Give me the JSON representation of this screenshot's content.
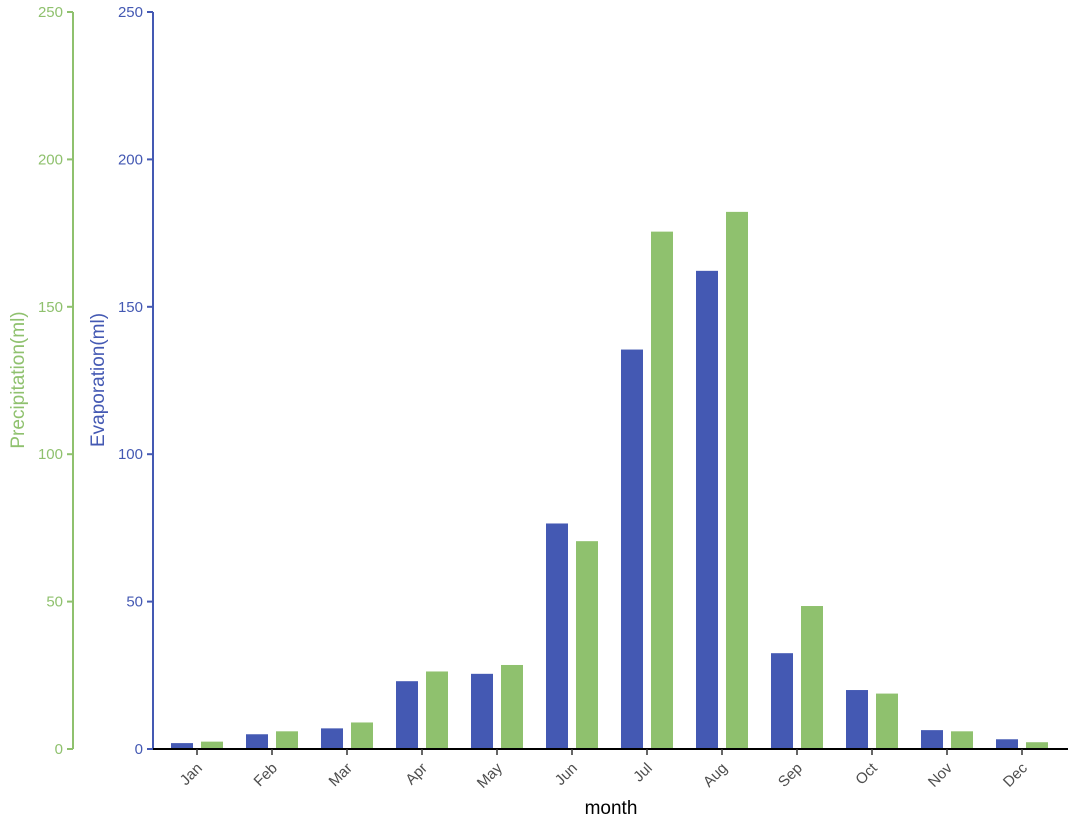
{
  "chart_data": {
    "type": "bar",
    "categories": [
      "Jan",
      "Feb",
      "Mar",
      "Apr",
      "May",
      "Jun",
      "Jul",
      "Aug",
      "Sep",
      "Oct",
      "Nov",
      "Dec"
    ],
    "series": [
      {
        "name": "Evaporation(ml)",
        "axis": "left-inner",
        "color": "#4459b3",
        "values": [
          2,
          5,
          7,
          23,
          25.5,
          76.5,
          135.5,
          162.2,
          32.5,
          20,
          6.4,
          3.3
        ]
      },
      {
        "name": "Precipitation(ml)",
        "axis": "left-outer",
        "color": "#8fc16e",
        "values": [
          2.5,
          6,
          9,
          26.3,
          28.5,
          70.5,
          175.5,
          182.2,
          48.5,
          18.8,
          6,
          2.3
        ]
      }
    ],
    "xlabel": "month",
    "y_evaporation": {
      "label": "Evaporation(ml)",
      "color": "#4459b3",
      "ylim": [
        0,
        250
      ],
      "ticks": [
        "0",
        "50",
        "100",
        "150",
        "200",
        "250"
      ]
    },
    "y_precipitation": {
      "label": "Precipitation(ml)",
      "color": "#8fc16e",
      "ylim": [
        0,
        250
      ],
      "ticks": [
        "0",
        "50",
        "100",
        "150",
        "200",
        "250"
      ]
    },
    "grid": false,
    "legend": "none"
  }
}
